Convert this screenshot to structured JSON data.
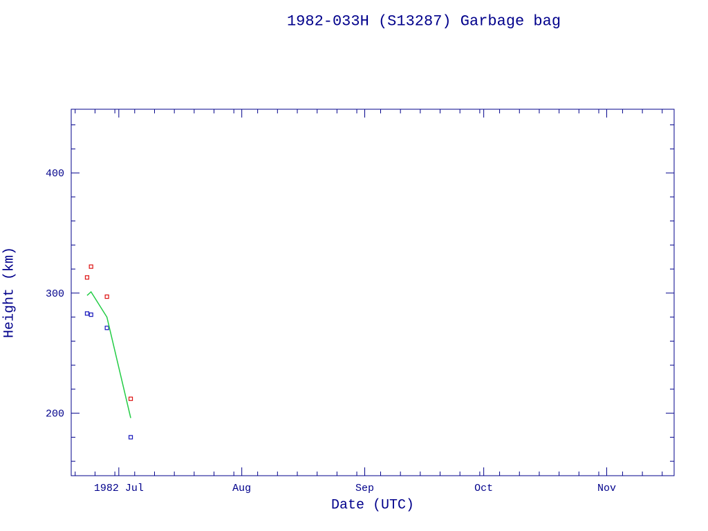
{
  "page": {
    "background": "#ffffff"
  },
  "chart_data": {
    "type": "scatter",
    "title": "1982-033H (S13287) Garbage bag",
    "xlabel": "Date (UTC)",
    "ylabel": "Height (km)",
    "axis_color": "#00008b",
    "grid": false,
    "legend": "none",
    "x_range": [
      "1982-06-19",
      "1982-11-18"
    ],
    "y_range": [
      148,
      453
    ],
    "x_ticks": [
      {
        "date": "1982-07-01",
        "label": "1982 Jul"
      },
      {
        "date": "1982-08-01",
        "label": "Aug"
      },
      {
        "date": "1982-09-01",
        "label": "Sep"
      },
      {
        "date": "1982-10-01",
        "label": "Oct"
      },
      {
        "date": "1982-11-01",
        "label": "Nov"
      }
    ],
    "x_minor_tick_days_of_month": [
      5,
      10,
      15,
      20,
      25,
      30
    ],
    "y_ticks": [
      200,
      300,
      400
    ],
    "y_minor_step": 20,
    "series": [
      {
        "name": "apogee-height",
        "type": "scatter",
        "marker": "square",
        "color": "#dd1111",
        "points": [
          [
            "1982-06-23",
            313
          ],
          [
            "1982-06-24",
            322
          ],
          [
            "1982-06-28",
            297
          ],
          [
            "1982-07-04",
            212
          ]
        ]
      },
      {
        "name": "perigee-height",
        "type": "scatter",
        "marker": "square",
        "color": "#1414bb",
        "points": [
          [
            "1982-06-23",
            283
          ],
          [
            "1982-06-24",
            282
          ],
          [
            "1982-06-28",
            271
          ],
          [
            "1982-07-04",
            180
          ]
        ]
      },
      {
        "name": "mean-height-fit",
        "type": "line",
        "color": "#22cc44",
        "points": [
          [
            "1982-06-23",
            298
          ],
          [
            "1982-06-24",
            301
          ],
          [
            "1982-06-28",
            280
          ],
          [
            "1982-07-04",
            196
          ]
        ]
      }
    ]
  }
}
